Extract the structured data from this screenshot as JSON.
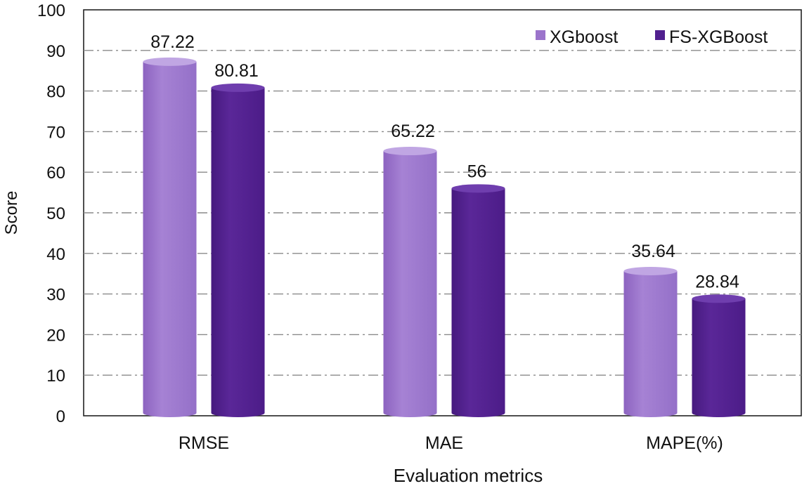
{
  "chart_data": {
    "type": "bar",
    "title": "",
    "xlabel": "Evaluation metrics",
    "ylabel": "Score",
    "ylim": [
      0,
      100
    ],
    "yticks": [
      0,
      10,
      20,
      30,
      40,
      50,
      60,
      70,
      80,
      90,
      100
    ],
    "ytick_labels": [
      "0",
      "10",
      "20",
      "30",
      "40",
      "50",
      "60",
      "70",
      "80",
      "90",
      "100"
    ],
    "grid": true,
    "legend_position": "top-right",
    "bar_style": "cylinder",
    "categories": [
      "RMSE",
      "MAE",
      "MAPE(%)"
    ],
    "series": [
      {
        "name": "XGboost",
        "color": "#9b74cb",
        "values": [
          87.22,
          65.22,
          35.64
        ],
        "value_labels": [
          "87.22",
          "65.22",
          "35.64"
        ]
      },
      {
        "name": "FS-XGBoost",
        "color": "#51208f",
        "values": [
          80.81,
          56,
          28.84
        ],
        "value_labels": [
          "80.81",
          "56",
          "28.84"
        ]
      }
    ]
  }
}
